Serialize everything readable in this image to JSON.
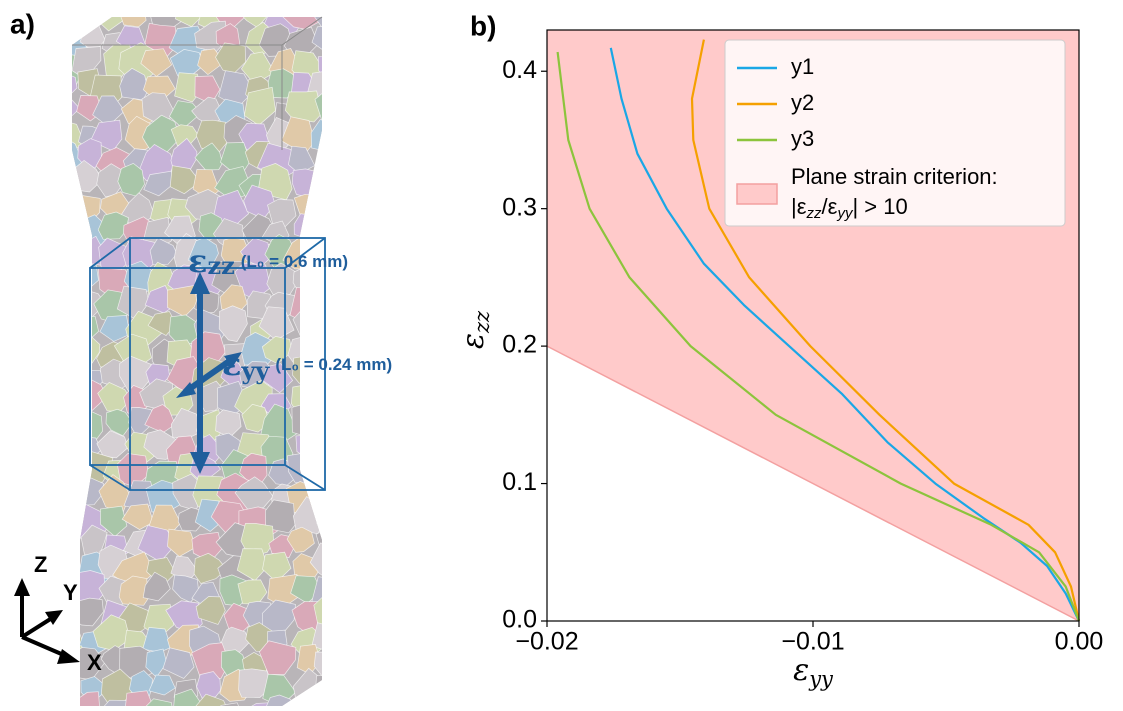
{
  "panel_a": {
    "label": "a)",
    "zz": {
      "symbol": "ε",
      "sub": "zz",
      "note": "(L₀ = 0.6 mm)"
    },
    "yy": {
      "symbol": "ε",
      "sub": "yy",
      "note": "(L₀ = 0.24 mm)"
    },
    "axes": {
      "z": "Z",
      "y": "Y",
      "x": "X"
    }
  },
  "chart_data": {
    "type": "line",
    "panel_label": "b)",
    "xlabel": {
      "symbol": "ε",
      "sub": "yy"
    },
    "ylabel": {
      "symbol": "ε",
      "sub": "zz"
    },
    "xlim": [
      -0.02,
      0.0
    ],
    "ylim": [
      0,
      0.43
    ],
    "xticks": [
      {
        "value": -0.02,
        "label": "−0.02"
      },
      {
        "value": -0.01,
        "label": "−0.01"
      },
      {
        "value": 0.0,
        "label": "0.00"
      }
    ],
    "yticks": [
      {
        "value": 0,
        "label": "0.0"
      },
      0.1,
      0.2,
      0.3,
      0.4
    ],
    "legend": "upper right",
    "region": {
      "name": "Plane strain criterion:",
      "condition_parts": [
        "|ε",
        "zz",
        "/ε",
        "yy",
        "| > 10"
      ],
      "color": "#ffcaca",
      "x": [
        -0.02,
        0.0
      ],
      "lower": [
        0.2,
        0.0
      ]
    },
    "series": [
      {
        "name": "y1",
        "color": "#1aa7e6",
        "x": [
          -0.0176,
          -0.0172,
          -0.0166,
          -0.0155,
          -0.0141,
          -0.0126,
          -0.0109,
          -0.0089,
          -0.0072,
          -0.0054,
          -0.0036,
          -0.0022,
          -0.0012,
          -0.0005,
          0.0
        ],
        "values": [
          0.417,
          0.38,
          0.34,
          0.3,
          0.26,
          0.23,
          0.2,
          0.165,
          0.13,
          0.1,
          0.075,
          0.057,
          0.04,
          0.02,
          0.0
        ]
      },
      {
        "name": "y2",
        "color": "#f5a000",
        "x": [
          -0.0141,
          -0.01455,
          -0.0145,
          -0.0139,
          -0.0124,
          -0.0101,
          -0.0075,
          -0.0047,
          -0.0019,
          -0.0009,
          -0.0003,
          0.0
        ],
        "values": [
          0.423,
          0.38,
          0.35,
          0.3,
          0.25,
          0.2,
          0.15,
          0.1,
          0.07,
          0.05,
          0.025,
          0.0
        ]
      },
      {
        "name": "y3",
        "color": "#8cc43c",
        "x": [
          -0.0196,
          -0.0192,
          -0.0184,
          -0.0169,
          -0.0146,
          -0.0114,
          -0.0067,
          -0.0033,
          -0.0015,
          -0.0005,
          0.0
        ],
        "values": [
          0.414,
          0.35,
          0.3,
          0.25,
          0.2,
          0.15,
          0.1,
          0.07,
          0.05,
          0.025,
          0.0
        ]
      }
    ]
  }
}
